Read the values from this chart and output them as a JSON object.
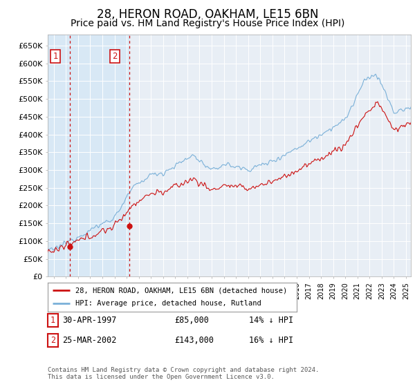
{
  "title": "28, HERON ROAD, OAKHAM, LE15 6BN",
  "subtitle": "Price paid vs. HM Land Registry's House Price Index (HPI)",
  "title_fontsize": 12,
  "subtitle_fontsize": 10,
  "ylabel_ticks": [
    "£0",
    "£50K",
    "£100K",
    "£150K",
    "£200K",
    "£250K",
    "£300K",
    "£350K",
    "£400K",
    "£450K",
    "£500K",
    "£550K",
    "£600K",
    "£650K"
  ],
  "ytick_vals": [
    0,
    50000,
    100000,
    150000,
    200000,
    250000,
    300000,
    350000,
    400000,
    450000,
    500000,
    550000,
    600000,
    650000
  ],
  "xlim": [
    1995.5,
    2025.4
  ],
  "ylim": [
    0,
    680000
  ],
  "line_color_hpi": "#7ab0d8",
  "line_color_price": "#cc1111",
  "marker_color": "#cc1111",
  "vline_color": "#cc1111",
  "shade_color": "#d8e8f5",
  "transactions": [
    {
      "label": "1",
      "date": "30-APR-1997",
      "price": 85000,
      "year": 1997.33,
      "pct": "14%",
      "dir": "↓"
    },
    {
      "label": "2",
      "date": "25-MAR-2002",
      "price": 143000,
      "year": 2002.22,
      "pct": "16%",
      "dir": "↓"
    }
  ],
  "legend_label_price": "28, HERON ROAD, OAKHAM, LE15 6BN (detached house)",
  "legend_label_hpi": "HPI: Average price, detached house, Rutland",
  "footnote": "Contains HM Land Registry data © Crown copyright and database right 2024.\nThis data is licensed under the Open Government Licence v3.0.",
  "background_color": "#ffffff",
  "plot_bg_color": "#e8eef5"
}
